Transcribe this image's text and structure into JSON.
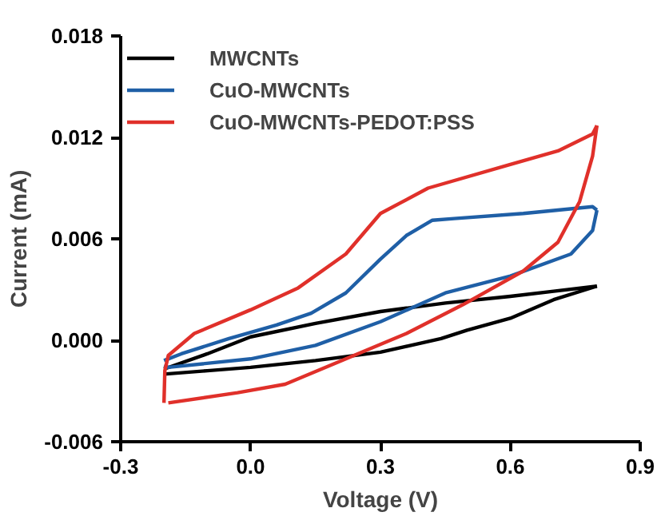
{
  "chart_data": {
    "type": "line",
    "xlabel": "Voltage (V)",
    "ylabel": "Current (mA)",
    "xlim": [
      -0.3,
      0.9
    ],
    "xticks": [
      {
        "value": -0.3,
        "label": "-0.3"
      },
      {
        "value": 0,
        "label": "0.0"
      },
      {
        "value": 0.3,
        "label": "0.3"
      },
      {
        "value": 0.6,
        "label": "0.6"
      },
      {
        "value": 0.9,
        "label": "0.9"
      }
    ],
    "ylim": [
      -0.006,
      0.018
    ],
    "yticks": [
      {
        "value": -0.006,
        "label": "-0.006"
      },
      {
        "value": 0,
        "label": "0.000"
      },
      {
        "value": 0.006,
        "label": "0.006"
      },
      {
        "value": 0.012,
        "label": "0.012"
      },
      {
        "value": 0.018,
        "label": "0.018"
      }
    ],
    "grid": false,
    "legend": "top left",
    "series": [
      {
        "name": "MWCNTs",
        "color": "#000000",
        "x": [
          -0.2,
          -0.1,
          0.0,
          0.15,
          0.3,
          0.45,
          0.6,
          0.7,
          0.8
        ],
        "values": [
          -0.0017,
          -0.0008,
          0.0002,
          0.001,
          0.0017,
          0.0022,
          0.0026,
          0.0029,
          0.0032
        ]
      },
      {
        "color": "#000000",
        "x": [
          -0.2,
          -0.1,
          0.0,
          0.15,
          0.3,
          0.44,
          0.5,
          0.6,
          0.7,
          0.8
        ],
        "values": [
          -0.002,
          -0.0018,
          -0.0016,
          -0.0012,
          -0.0007,
          0.0001,
          0.0006,
          0.0013,
          0.0024,
          0.0032
        ]
      },
      {
        "name": "CuO-MWCNTs",
        "color": "#1f5fa6",
        "x": [
          -0.2,
          -0.16,
          -0.05,
          0.06,
          0.14,
          0.22,
          0.3,
          0.36,
          0.42,
          0.47,
          0.63,
          0.79,
          0.8
        ],
        "values": [
          -0.0012,
          -0.0008,
          0.0001,
          0.0009,
          0.0016,
          0.0028,
          0.0048,
          0.0062,
          0.0071,
          0.0072,
          0.0075,
          0.0079,
          0.0077
        ]
      },
      {
        "color": "#1f5fa6",
        "x": [
          -0.2,
          -0.19,
          0.0,
          0.15,
          0.3,
          0.45,
          0.6,
          0.74,
          0.79,
          0.8
        ],
        "values": [
          -0.0015,
          -0.0016,
          -0.0011,
          -0.0003,
          0.0011,
          0.0028,
          0.0038,
          0.0051,
          0.0065,
          0.0077
        ]
      },
      {
        "name": "CuO-MWCNTs-PEDOT:PSS",
        "color": "#e0302a",
        "x": [
          -0.2,
          -0.198,
          -0.19,
          -0.13,
          0.0,
          0.11,
          0.22,
          0.3,
          0.41,
          0.6,
          0.71,
          0.79,
          0.8
        ],
        "values": [
          -0.0037,
          -0.0018,
          -0.0009,
          0.0004,
          0.0018,
          0.0031,
          0.0051,
          0.0075,
          0.009,
          0.0104,
          0.0112,
          0.0122,
          0.0127
        ]
      },
      {
        "color": "#e0302a",
        "x": [
          -0.19,
          -0.03,
          0.08,
          0.22,
          0.36,
          0.49,
          0.63,
          0.71,
          0.76,
          0.79,
          0.8
        ],
        "values": [
          -0.0037,
          -0.0031,
          -0.0026,
          -0.0011,
          0.0004,
          0.0021,
          0.0041,
          0.0058,
          0.0082,
          0.0109,
          0.0127
        ]
      }
    ]
  }
}
